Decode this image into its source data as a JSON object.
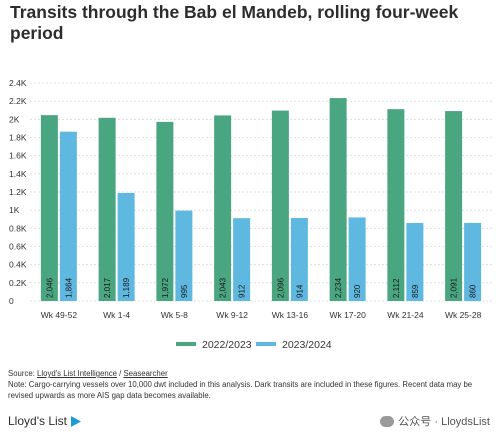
{
  "header": {
    "title": "Transits through the Bab el Mandeb, rolling four-week period"
  },
  "colors": {
    "series_2022_2023": "#4aa681",
    "series_2023_2024": "#5fb8e0",
    "grid": "#d9d9d9",
    "axis_text": "#333333"
  },
  "chart_data": {
    "type": "bar",
    "categories": [
      "Wk 49-52",
      "Wk 1-4",
      "Wk 5-8",
      "Wk 9-12",
      "Wk 13-16",
      "Wk 17-20",
      "Wk 21-24",
      "Wk 25-28"
    ],
    "series": [
      {
        "name": "2022/2023",
        "values": [
          2046,
          2017,
          1972,
          2043,
          2096,
          2234,
          2112,
          2091
        ],
        "labels": [
          "2,046",
          "2,017",
          "1,972",
          "2,043",
          "2,096",
          "2,234",
          "2,112",
          "2,091"
        ]
      },
      {
        "name": "2023/2024",
        "values": [
          1864,
          1189,
          995,
          912,
          914,
          920,
          859,
          860
        ],
        "labels": [
          "1,864",
          "1,189",
          "995",
          "912",
          "914",
          "920",
          "859",
          "860"
        ]
      }
    ],
    "yticks": [
      0,
      200,
      400,
      600,
      800,
      1000,
      1200,
      1400,
      1600,
      1800,
      2000,
      2200,
      2400
    ],
    "ytick_labels": [
      "0",
      "0.2K",
      "0.4K",
      "0.6K",
      "0.8K",
      "1K",
      "1.2K",
      "1.4K",
      "1.6K",
      "1.8K",
      "2K",
      "2.2K",
      "2.4K"
    ],
    "ylim": [
      0,
      2400
    ],
    "grid": true,
    "legend_position": "bottom-center",
    "title": "Transits through the Bab el Mandeb, rolling four-week period",
    "xlabel": "",
    "ylabel": ""
  },
  "footer": {
    "source_prefix": "Source: ",
    "source_1": "Lloyd's List Intelligence",
    "source_sep": " / ",
    "source_2": "Seasearcher",
    "note_line1": "Note: Cargo-carrying vessels over 10,000 dwt included in this analysis. Dark transits are included in these figures. Recent data may be",
    "note_line2": "revised upwards as more AIS gap data becomes available.",
    "brand": "Lloyd's List",
    "watermark": "公众号 · LloydsList"
  }
}
